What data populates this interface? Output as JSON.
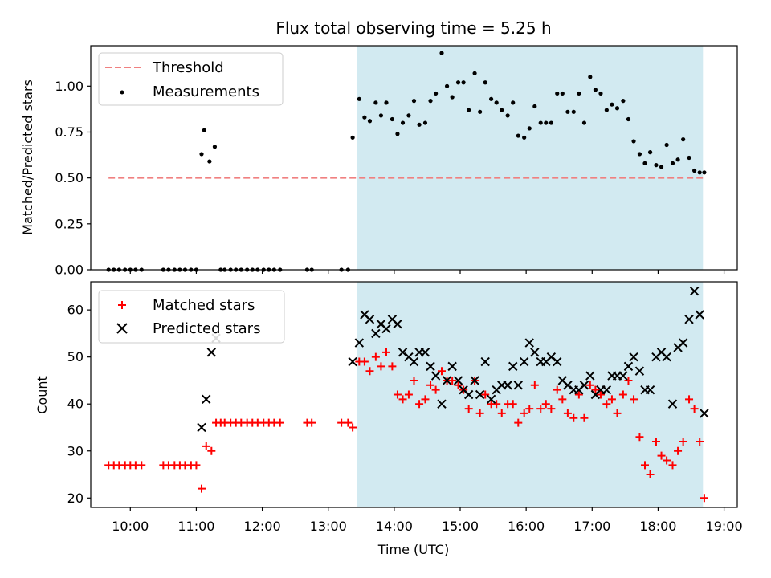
{
  "chart_data": [
    {
      "type": "scatter",
      "title": "Flux total observing time = 5.25 h",
      "xlabel": "",
      "ylabel": "Matched/Predicted stars",
      "xlim": [
        9.4,
        19.2
      ],
      "ylim": [
        0,
        1.22
      ],
      "yticks": [
        0,
        0.25,
        0.5,
        0.75,
        1.0
      ],
      "ytick_labels": [
        "0.00",
        "0.25",
        "0.50",
        "0.75",
        "1.00"
      ],
      "shaded_region": {
        "x": [
          13.43,
          18.68
        ],
        "color": "#add8e6"
      },
      "legend": {
        "position": "top-left",
        "entries": [
          "Threshold",
          "Measurements"
        ]
      },
      "series": [
        {
          "name": "Threshold",
          "kind": "dashed-line",
          "color": "#f08080",
          "x": [
            9.67,
            18.68
          ],
          "y": [
            0.5,
            0.5
          ]
        },
        {
          "name": "Measurements",
          "kind": "points",
          "color": "#000000",
          "x": [
            9.67,
            9.75,
            9.83,
            9.92,
            10.0,
            10.08,
            10.17,
            10.5,
            10.58,
            10.67,
            10.75,
            10.83,
            10.92,
            11.0,
            11.08,
            11.12,
            11.2,
            11.28,
            11.37,
            11.43,
            11.52,
            11.6,
            11.68,
            11.77,
            11.85,
            11.93,
            12.02,
            12.1,
            12.18,
            12.27,
            12.68,
            12.75,
            13.2,
            13.3,
            13.37,
            13.47,
            13.55,
            13.63,
            13.72,
            13.8,
            13.88,
            13.97,
            14.05,
            14.13,
            14.22,
            14.3,
            14.38,
            14.47,
            14.55,
            14.63,
            14.72,
            14.8,
            14.88,
            14.97,
            15.05,
            15.13,
            15.22,
            15.3,
            15.38,
            15.47,
            15.55,
            15.63,
            15.72,
            15.8,
            15.88,
            15.97,
            16.05,
            16.13,
            16.22,
            16.3,
            16.38,
            16.47,
            16.55,
            16.63,
            16.72,
            16.8,
            16.88,
            16.97,
            17.05,
            17.13,
            17.22,
            17.3,
            17.38,
            17.47,
            17.55,
            17.63,
            17.72,
            17.8,
            17.88,
            17.97,
            18.05,
            18.13,
            18.22,
            18.3,
            18.38,
            18.47,
            18.55,
            18.63,
            18.7
          ],
          "y": [
            0,
            0,
            0,
            0,
            0,
            0,
            0,
            0,
            0,
            0,
            0,
            0,
            0,
            0,
            0.63,
            0.76,
            0.59,
            0.67,
            0,
            0,
            0,
            0,
            0,
            0,
            0,
            0,
            0,
            0,
            0,
            0,
            0,
            0,
            0,
            0,
            0.72,
            0.93,
            0.83,
            0.81,
            0.91,
            0.84,
            0.91,
            0.82,
            0.74,
            0.8,
            0.84,
            0.92,
            0.79,
            0.8,
            0.92,
            0.96,
            1.18,
            1.0,
            0.94,
            1.02,
            1.02,
            0.87,
            1.07,
            0.86,
            1.02,
            0.93,
            0.91,
            0.87,
            0.84,
            0.91,
            0.73,
            0.72,
            0.77,
            0.89,
            0.8,
            0.8,
            0.8,
            0.96,
            0.96,
            0.86,
            0.86,
            0.96,
            0.8,
            1.05,
            0.98,
            0.96,
            0.87,
            0.9,
            0.88,
            0.92,
            0.82,
            0.7,
            0.63,
            0.58,
            0.64,
            0.57,
            0.56,
            0.68,
            0.58,
            0.6,
            0.71,
            0.61,
            0.54,
            0.53,
            0.53
          ]
        }
      ]
    },
    {
      "type": "scatter",
      "title": "",
      "xlabel": "Time (UTC)",
      "ylabel": "Count",
      "xlim": [
        9.4,
        19.2
      ],
      "ylim": [
        18,
        66
      ],
      "yticks": [
        20,
        30,
        40,
        50,
        60
      ],
      "ytick_labels": [
        "20",
        "30",
        "40",
        "50",
        "60"
      ],
      "xticks": [
        10,
        11,
        12,
        13,
        14,
        15,
        16,
        17,
        18,
        19
      ],
      "xtick_labels": [
        "10:00",
        "11:00",
        "12:00",
        "13:00",
        "14:00",
        "15:00",
        "16:00",
        "17:00",
        "18:00",
        "19:00"
      ],
      "shaded_region": {
        "x": [
          13.43,
          18.68
        ],
        "color": "#add8e6"
      },
      "legend": {
        "position": "top-left",
        "entries": [
          "Matched stars",
          "Predicted stars"
        ]
      },
      "series": [
        {
          "name": "Matched stars",
          "kind": "plus",
          "color": "#ff0000",
          "x": [
            9.67,
            9.75,
            9.83,
            9.92,
            10.0,
            10.08,
            10.17,
            10.5,
            10.58,
            10.67,
            10.75,
            10.83,
            10.92,
            11.0,
            11.08,
            11.15,
            11.23,
            11.3,
            11.37,
            11.43,
            11.52,
            11.6,
            11.68,
            11.77,
            11.85,
            11.93,
            12.02,
            12.1,
            12.18,
            12.27,
            12.68,
            12.75,
            13.2,
            13.3,
            13.37,
            13.47,
            13.55,
            13.63,
            13.72,
            13.8,
            13.88,
            13.97,
            14.05,
            14.13,
            14.22,
            14.3,
            14.38,
            14.47,
            14.55,
            14.63,
            14.72,
            14.8,
            14.88,
            14.97,
            15.05,
            15.13,
            15.22,
            15.3,
            15.38,
            15.47,
            15.55,
            15.63,
            15.72,
            15.8,
            15.88,
            15.97,
            16.05,
            16.13,
            16.22,
            16.3,
            16.38,
            16.47,
            16.55,
            16.63,
            16.72,
            16.8,
            16.88,
            16.97,
            17.05,
            17.13,
            17.22,
            17.3,
            17.38,
            17.47,
            17.55,
            17.63,
            17.72,
            17.8,
            17.88,
            17.97,
            18.05,
            18.13,
            18.22,
            18.3,
            18.38,
            18.47,
            18.55,
            18.63,
            18.7
          ],
          "y": [
            27,
            27,
            27,
            27,
            27,
            27,
            27,
            27,
            27,
            27,
            27,
            27,
            27,
            27,
            22,
            31,
            30,
            36,
            36,
            36,
            36,
            36,
            36,
            36,
            36,
            36,
            36,
            36,
            36,
            36,
            36,
            36,
            36,
            36,
            35,
            49,
            49,
            47,
            50,
            48,
            51,
            48,
            42,
            41,
            42,
            45,
            40,
            41,
            44,
            43,
            47,
            45,
            45,
            44,
            43,
            39,
            45,
            38,
            42,
            40,
            40,
            38,
            40,
            40,
            36,
            38,
            39,
            44,
            39,
            40,
            39,
            43,
            41,
            38,
            37,
            42,
            37,
            44,
            43,
            42,
            40,
            41,
            38,
            42,
            45,
            41,
            33,
            27,
            25,
            32,
            29,
            28,
            27,
            30,
            32,
            41,
            39,
            32,
            20
          ]
        },
        {
          "name": "Predicted stars",
          "kind": "x",
          "color": "#000000",
          "x": [
            11.08,
            11.15,
            11.23,
            11.3,
            13.37,
            13.47,
            13.55,
            13.63,
            13.72,
            13.8,
            13.88,
            13.97,
            14.05,
            14.13,
            14.22,
            14.3,
            14.38,
            14.47,
            14.55,
            14.63,
            14.72,
            14.8,
            14.88,
            14.97,
            15.05,
            15.13,
            15.22,
            15.3,
            15.38,
            15.47,
            15.55,
            15.63,
            15.72,
            15.8,
            15.88,
            15.97,
            16.05,
            16.13,
            16.22,
            16.3,
            16.38,
            16.47,
            16.55,
            16.63,
            16.72,
            16.8,
            16.88,
            16.97,
            17.05,
            17.13,
            17.22,
            17.3,
            17.38,
            17.47,
            17.55,
            17.63,
            17.72,
            17.8,
            17.88,
            17.97,
            18.05,
            18.13,
            18.22,
            18.3,
            18.38,
            18.47,
            18.55,
            18.63,
            18.7
          ],
          "y": [
            35,
            41,
            51,
            54,
            49,
            53,
            59,
            58,
            55,
            57,
            56,
            58,
            57,
            51,
            50,
            49,
            51,
            51,
            48,
            46,
            40,
            45,
            48,
            45,
            43,
            42,
            45,
            42,
            49,
            41,
            43,
            44,
            44,
            48,
            44,
            49,
            53,
            51,
            49,
            49,
            50,
            49,
            45,
            44,
            43,
            43,
            44,
            46,
            42,
            43,
            43,
            46,
            46,
            46,
            48,
            50,
            47,
            43,
            43,
            50,
            51,
            50,
            40,
            52,
            53,
            58,
            64,
            59,
            38
          ]
        }
      ]
    }
  ]
}
